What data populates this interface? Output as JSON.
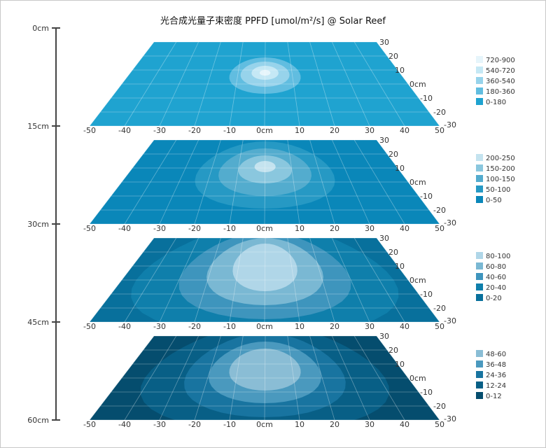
{
  "chart_data": {
    "type": "heatmap",
    "title": "光合成光量子束密度 PPFD [umol/m²/s] @ Solar Reef",
    "depth_axis": {
      "ticks": [
        "0cm",
        "15cm",
        "30cm",
        "45cm",
        "60cm"
      ]
    },
    "x_axis": {
      "range": [
        -50,
        50
      ],
      "ticks": [
        "-50",
        "-40",
        "-30",
        "-20",
        "-10",
        "0cm",
        "10",
        "20",
        "30",
        "40",
        "50"
      ]
    },
    "y_axis": {
      "range": [
        -30,
        30
      ],
      "ticks": [
        "30",
        "20",
        "10",
        "0cm",
        "-10",
        "-20",
        "-30"
      ]
    },
    "layers": [
      {
        "depth": "0cm–15cm",
        "background": "#1fa3d0",
        "legend": [
          {
            "label": "720-900",
            "color": "#e6f5fb"
          },
          {
            "label": "540-720",
            "color": "#c5e8f5"
          },
          {
            "label": "360-540",
            "color": "#97d3eb"
          },
          {
            "label": "180-360",
            "color": "#61bde0"
          },
          {
            "label": "0-180",
            "color": "#1fa3d0"
          }
        ],
        "contours": [
          {
            "level": "180-360",
            "cx": 0,
            "cy": 6,
            "rx": 13,
            "ry": 13
          },
          {
            "level": "360-540",
            "cx": 0,
            "cy": 7,
            "rx": 9,
            "ry": 9
          },
          {
            "level": "540-720",
            "cx": 0,
            "cy": 8,
            "rx": 5,
            "ry": 5
          },
          {
            "level": "720-900",
            "cx": 0,
            "cy": 8,
            "rx": 2,
            "ry": 2
          }
        ]
      },
      {
        "depth": "15cm–30cm",
        "background": "#0a87b9",
        "legend": [
          {
            "label": "200-250",
            "color": "#c4e3ef"
          },
          {
            "label": "150-200",
            "color": "#8ac7de"
          },
          {
            "label": "100-150",
            "color": "#53acce"
          },
          {
            "label": "50-100",
            "color": "#2699c4"
          },
          {
            "label": "0-50",
            "color": "#0a87b9"
          }
        ],
        "contours": [
          {
            "level": "50-100",
            "cx": 0,
            "cy": 5,
            "rx": 25,
            "ry": 24
          },
          {
            "level": "100-150",
            "cx": 0,
            "cy": 7,
            "rx": 17,
            "ry": 17
          },
          {
            "level": "150-200",
            "cx": 0,
            "cy": 9,
            "rx": 10,
            "ry": 10
          },
          {
            "level": "200-250",
            "cx": 0,
            "cy": 11,
            "rx": 4,
            "ry": 4
          }
        ]
      },
      {
        "depth": "30cm–45cm",
        "background": "#08709c",
        "legend": [
          {
            "label": "80-100",
            "color": "#b0d6e8"
          },
          {
            "label": "60-80",
            "color": "#7ab8d3"
          },
          {
            "label": "40-60",
            "color": "#3e95bd"
          },
          {
            "label": "20-40",
            "color": "#0f7fab"
          },
          {
            "label": "0-20",
            "color": "#08709c"
          }
        ],
        "contours": [
          {
            "level": "20-40",
            "cx": 0,
            "cy": 0,
            "rx": 45,
            "ry": 40
          },
          {
            "level": "40-60",
            "cx": 0,
            "cy": 3,
            "rx": 30,
            "ry": 31
          },
          {
            "level": "60-80",
            "cx": 0,
            "cy": 6,
            "rx": 21,
            "ry": 24
          },
          {
            "level": "80-100",
            "cx": 0,
            "cy": 9,
            "rx": 12,
            "ry": 17
          }
        ]
      },
      {
        "depth": "45cm–60cm",
        "background": "#054d6e",
        "legend": [
          {
            "label": "48-60",
            "color": "#8abdd5"
          },
          {
            "label": "36-48",
            "color": "#4a99be"
          },
          {
            "label": "24-36",
            "color": "#1874a0"
          },
          {
            "label": "12-24",
            "color": "#085f86"
          },
          {
            "label": "0-12",
            "color": "#054d6e"
          }
        ],
        "contours": [
          {
            "level": "12-24",
            "cx": 0,
            "cy": 0,
            "rx": 42,
            "ry": 38
          },
          {
            "level": "24-36",
            "cx": 0,
            "cy": 2,
            "rx": 28,
            "ry": 30
          },
          {
            "level": "36-48",
            "cx": 0,
            "cy": 4,
            "rx": 20,
            "ry": 22
          },
          {
            "level": "48-60",
            "cx": 0,
            "cy": 6,
            "rx": 13,
            "ry": 15
          }
        ]
      }
    ]
  }
}
